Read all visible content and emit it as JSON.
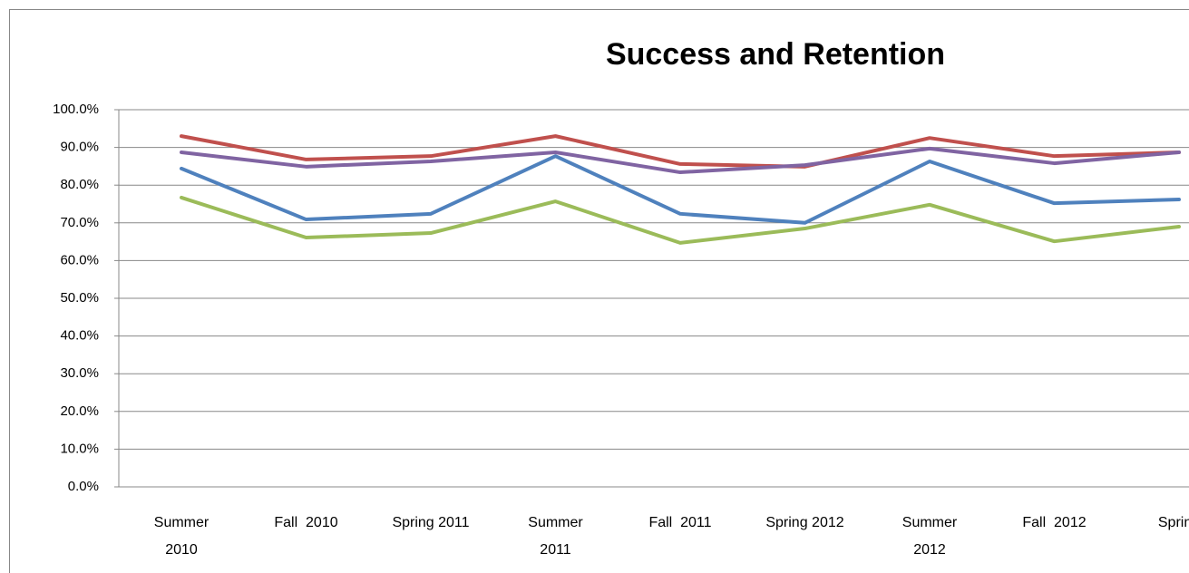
{
  "chart_data": {
    "type": "line",
    "title": "Success and Retention",
    "categories": [
      "Summer\n2010",
      "Fall  2010",
      "Spring 2011",
      "Summer\n2011",
      "Fall  2011",
      "Spring 2012",
      "Summer\n2012",
      "Fall  2012",
      "Spring"
    ],
    "series": [
      {
        "color": "#c0504d",
        "values": [
          93.0,
          86.8,
          87.7,
          93.0,
          85.6,
          84.9,
          92.5,
          87.7,
          88.7
        ]
      },
      {
        "color": "#8064a2",
        "values": [
          88.7,
          84.9,
          86.3,
          88.7,
          83.4,
          85.3,
          89.7,
          85.8,
          88.7
        ]
      },
      {
        "color": "#4f81bd",
        "values": [
          84.4,
          70.9,
          72.4,
          87.7,
          72.4,
          70.0,
          86.3,
          75.2,
          76.2
        ]
      },
      {
        "color": "#9bbb59",
        "values": [
          76.7,
          66.1,
          67.3,
          75.7,
          64.7,
          68.5,
          74.8,
          65.1,
          69.0
        ]
      }
    ],
    "ylim": [
      0,
      100
    ],
    "yticks": [
      {
        "value": 0,
        "label": "0.0%"
      },
      {
        "value": 10,
        "label": "10.0%"
      },
      {
        "value": 20,
        "label": "20.0%"
      },
      {
        "value": 30,
        "label": "30.0%"
      },
      {
        "value": 40,
        "label": "40.0%"
      },
      {
        "value": 50,
        "label": "50.0%"
      },
      {
        "value": 60,
        "label": "60.0%"
      },
      {
        "value": 70,
        "label": "70.0%"
      },
      {
        "value": 80,
        "label": "80.0%"
      },
      {
        "value": 90,
        "label": "90.0%"
      },
      {
        "value": 100,
        "label": "100.0%"
      }
    ],
    "grid": true
  }
}
